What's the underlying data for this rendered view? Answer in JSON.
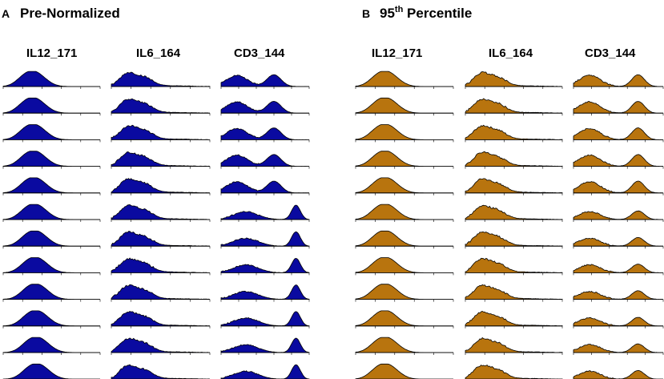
{
  "chart_data": {
    "type": "area",
    "description_rows": 12,
    "panels": [
      {
        "letter": "A",
        "title": "Pre-Normalized",
        "fill_color": "#0a0aa0",
        "columns": [
          {
            "name": "IL12_171",
            "shape": "il12"
          },
          {
            "name": "IL6_164",
            "shape": "il6"
          },
          {
            "name": "CD3_144",
            "shape": "cd3_raw"
          }
        ]
      },
      {
        "letter": "B",
        "title_main": "95",
        "title_sup": "th",
        "title_rest": " Percentile",
        "fill_color": "#b8740e",
        "columns": [
          {
            "name": "IL12_171",
            "shape": "il12n"
          },
          {
            "name": "IL6_164",
            "shape": "il6n"
          },
          {
            "name": "CD3_144",
            "shape": "cd3n"
          }
        ]
      }
    ],
    "x_range": [
      0,
      1
    ],
    "y_range": [
      0,
      1
    ],
    "x_ticks": 6
  },
  "colors": {
    "panel_a_fill": "#0a0aa0",
    "panel_b_fill": "#b8740e",
    "outline": "#000000"
  }
}
